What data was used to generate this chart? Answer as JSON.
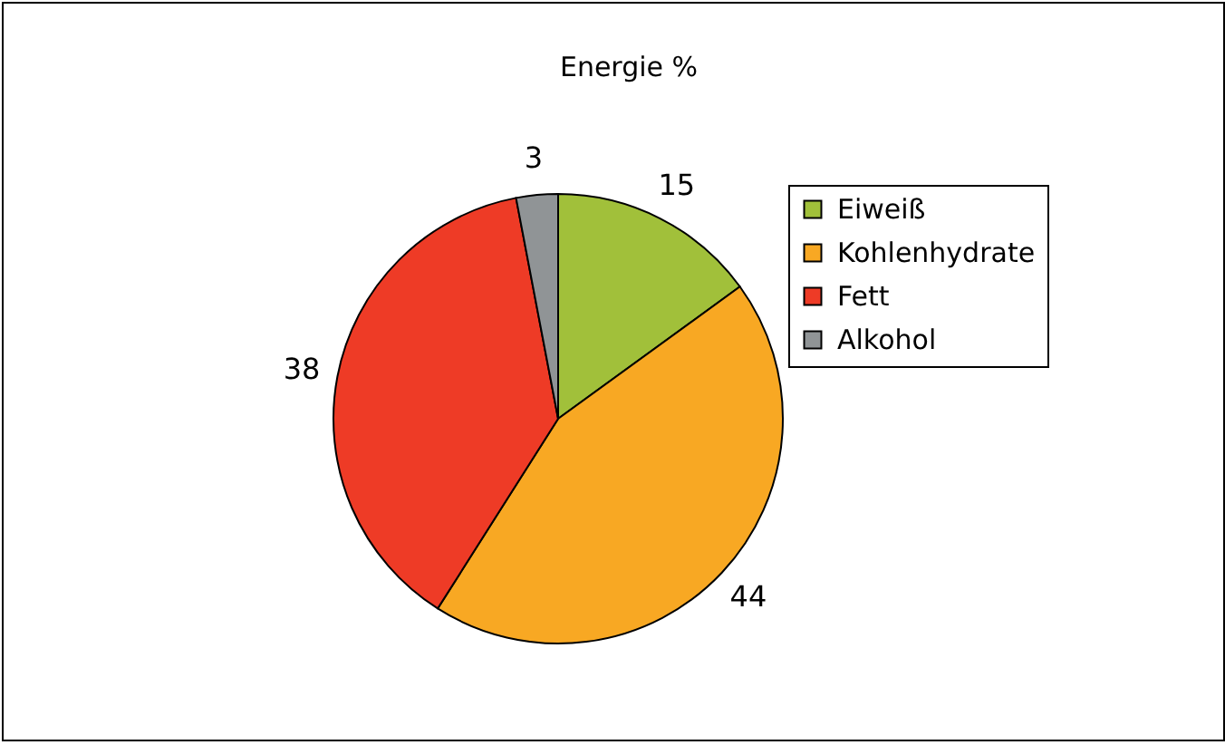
{
  "chart_data": {
    "type": "pie",
    "title": "Energie %",
    "categories": [
      "Eiweiß",
      "Kohlenhydrate",
      "Fett",
      "Alkohol"
    ],
    "values": [
      15,
      44,
      38,
      3
    ],
    "colors": [
      "#a1c03a",
      "#f8a823",
      "#ee3b26",
      "#909496"
    ],
    "data_labels": true,
    "legend": "right"
  }
}
